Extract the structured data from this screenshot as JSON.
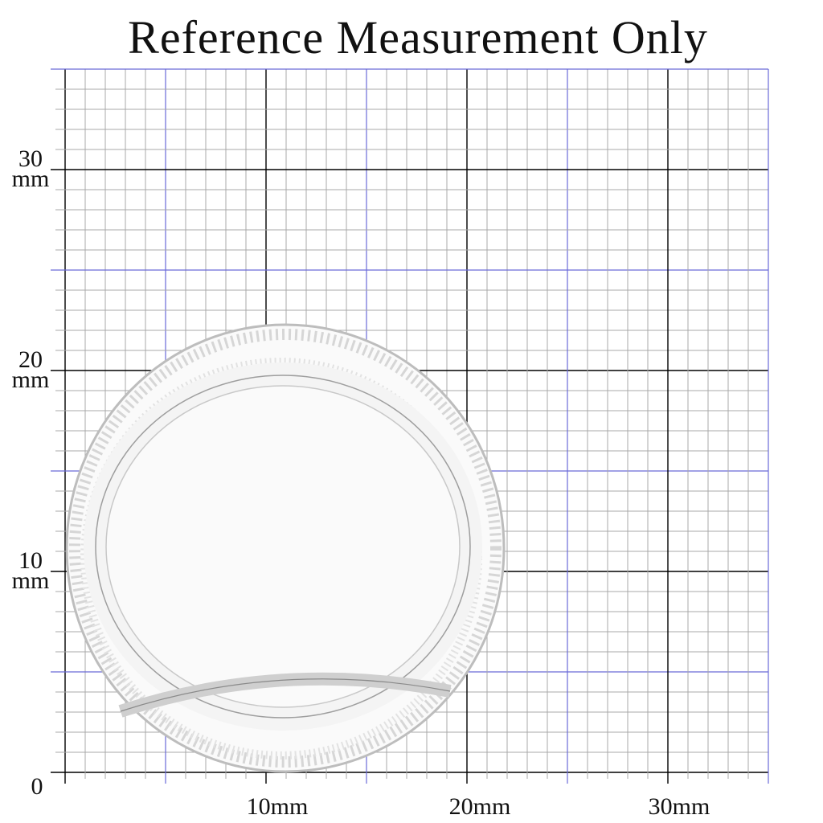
{
  "title": "Reference Measurement Only",
  "y_axis": {
    "labels": [
      {
        "number": "30",
        "unit": "mm"
      },
      {
        "number": "20",
        "unit": "mm"
      },
      {
        "number": "10",
        "unit": "mm"
      }
    ],
    "origin": "0"
  },
  "x_axis": {
    "labels": [
      "10mm",
      "20mm",
      "30mm"
    ]
  }
}
